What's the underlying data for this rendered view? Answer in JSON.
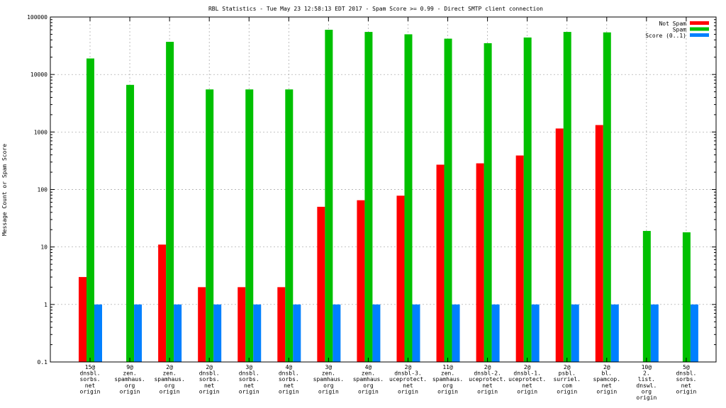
{
  "chart_data": {
    "type": "bar",
    "title": "RBL Statistics - Tue May 23 12:58:13 EDT 2017 - Spam Score >= 0.99 - Direct SMTP client connection",
    "ylabel": "Message Count or Spam Score",
    "xlabel": "",
    "y_scale": "log",
    "ylim": [
      0.1,
      100000
    ],
    "y_ticks": [
      {
        "value": 0.1,
        "label": "0.1"
      },
      {
        "value": 1,
        "label": "1"
      },
      {
        "value": 10,
        "label": "10"
      },
      {
        "value": 100,
        "label": "100"
      },
      {
        "value": 1000,
        "label": "1000"
      },
      {
        "value": 10000,
        "label": "10000"
      },
      {
        "value": 100000,
        "label": "100000"
      }
    ],
    "grid": true,
    "legend_position": "top-right",
    "categories": [
      [
        "15@",
        "dnsbl.",
        "sorbs.",
        "net",
        "origin"
      ],
      [
        "9@",
        "zen.",
        "spamhaus.",
        "org",
        "origin"
      ],
      [
        "2@",
        "zen.",
        "spamhaus.",
        "org",
        "origin"
      ],
      [
        "2@",
        "dnsbl.",
        "sorbs.",
        "net",
        "origin"
      ],
      [
        "3@",
        "dnsbl.",
        "sorbs.",
        "net",
        "origin"
      ],
      [
        "4@",
        "dnsbl.",
        "sorbs.",
        "net",
        "origin"
      ],
      [
        "3@",
        "zen.",
        "spamhaus.",
        "org",
        "origin"
      ],
      [
        "4@",
        "zen.",
        "spamhaus.",
        "org",
        "origin"
      ],
      [
        "2@",
        "dnsbl-3.",
        "uceprotect.",
        "net",
        "origin"
      ],
      [
        "11@",
        "zen.",
        "spamhaus.",
        "org",
        "origin"
      ],
      [
        "2@",
        "dnsbl-2.",
        "uceprotect.",
        "net",
        "origin"
      ],
      [
        "2@",
        "dnsbl-1.",
        "uceprotect.",
        "net",
        "origin"
      ],
      [
        "2@",
        "psbl.",
        "surriel.",
        "com",
        "origin"
      ],
      [
        "2@",
        "bl.",
        "spamcop.",
        "net",
        "origin"
      ],
      [
        "10@",
        "2.",
        "list.",
        "dnswl.",
        "org",
        "origin"
      ],
      [
        "5@",
        "dnsbl.",
        "sorbs.",
        "net",
        "origin"
      ]
    ],
    "series": [
      {
        "name": "Not Spam",
        "color": "#ff0000",
        "values": [
          3,
          null,
          11,
          2,
          2,
          2,
          50,
          65,
          78,
          270,
          285,
          390,
          1150,
          1320,
          null,
          null
        ]
      },
      {
        "name": "Spam",
        "color": "#00c000",
        "values": [
          19000,
          6600,
          37000,
          5500,
          5500,
          5500,
          60000,
          55000,
          50000,
          42000,
          35000,
          44000,
          55000,
          54000,
          19,
          18
        ]
      },
      {
        "name": "Score (0..1)",
        "color": "#0080ff",
        "values": [
          1,
          1,
          1,
          1,
          1,
          1,
          1,
          1,
          1,
          1,
          1,
          1,
          1,
          1,
          1,
          1
        ]
      }
    ]
  }
}
